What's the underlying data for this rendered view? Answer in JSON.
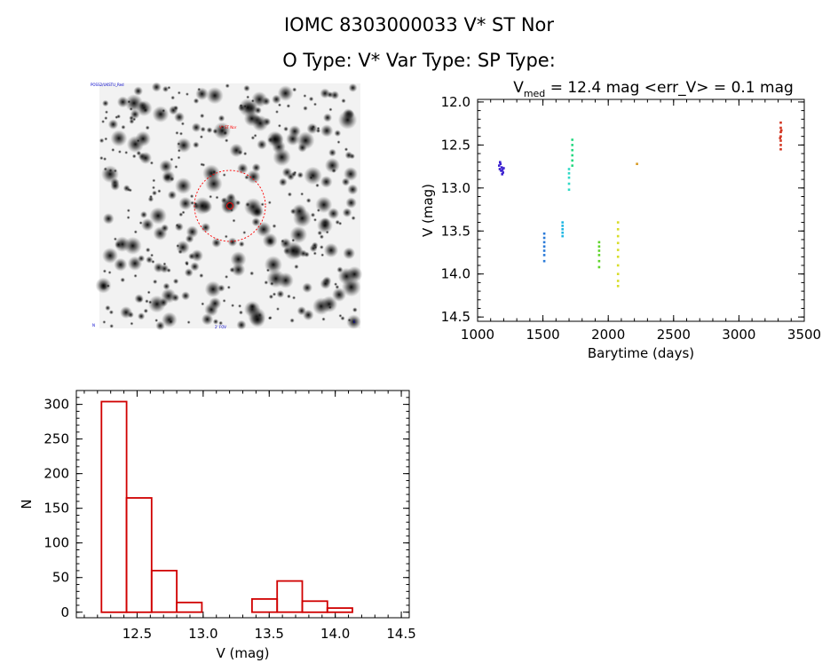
{
  "header": {
    "title_line1": "IOMC 8303000033   V* ST Nor",
    "title_line2": "O Type: V*  Var Type:   SP Type:"
  },
  "finder_image": {
    "label_top_left": "POSS2/UKSTU_Red",
    "label_target": "V* ST Nor",
    "label_bottom_center": "2' FOV",
    "label_bottom_left": "N",
    "label_bottom_right": "E",
    "colors": {
      "marker": "#ff0000",
      "labels": "#0000cc"
    }
  },
  "chart_data": [
    {
      "type": "scatter",
      "title_parts": {
        "prefix": "V",
        "subscript": "med",
        "suffix": " = 12.4 mag <err_V> = 0.1 mag"
      },
      "xlabel": "Barytime (days)",
      "ylabel": "V (mag)",
      "xlim": [
        1000,
        3500
      ],
      "ylim": [
        14.55,
        11.97
      ],
      "x_ticks": [
        "1000",
        "1500",
        "2000",
        "2500",
        "3000",
        "3500"
      ],
      "y_ticks": [
        "12.0",
        "12.5",
        "13.0",
        "13.5",
        "14.0",
        "14.5"
      ],
      "series": [
        {
          "color": "#3a1fd0",
          "points": [
            [
              1165,
              12.74
            ],
            [
              1170,
              12.78
            ],
            [
              1175,
              12.72
            ],
            [
              1180,
              12.8
            ],
            [
              1185,
              12.76
            ],
            [
              1190,
              12.79
            ],
            [
              1195,
              12.82
            ],
            [
              1200,
              12.77
            ],
            [
              1172,
              12.7
            ],
            [
              1188,
              12.84
            ]
          ]
        },
        {
          "color": "#2a7ad8",
          "points": [
            [
              1510,
              13.53
            ],
            [
              1510,
              13.58
            ],
            [
              1510,
              13.63
            ],
            [
              1510,
              13.68
            ],
            [
              1510,
              13.73
            ],
            [
              1510,
              13.78
            ],
            [
              1510,
              13.85
            ]
          ]
        },
        {
          "color": "#21b7e3",
          "points": [
            [
              1650,
              13.4
            ],
            [
              1650,
              13.44
            ],
            [
              1650,
              13.48
            ],
            [
              1650,
              13.52
            ],
            [
              1650,
              13.56
            ]
          ]
        },
        {
          "color": "#2fd9c6",
          "points": [
            [
              1700,
              12.78
            ],
            [
              1700,
              12.83
            ],
            [
              1700,
              12.88
            ],
            [
              1700,
              12.95
            ],
            [
              1700,
              13.02
            ]
          ]
        },
        {
          "color": "#25d880",
          "points": [
            [
              1725,
              12.44
            ],
            [
              1725,
              12.5
            ],
            [
              1725,
              12.56
            ],
            [
              1725,
              12.62
            ],
            [
              1725,
              12.68
            ],
            [
              1725,
              12.74
            ]
          ]
        },
        {
          "color": "#5fd42a",
          "points": [
            [
              1930,
              13.63
            ],
            [
              1930,
              13.68
            ],
            [
              1930,
              13.73
            ],
            [
              1930,
              13.78
            ],
            [
              1930,
              13.85
            ],
            [
              1930,
              13.92
            ]
          ]
        },
        {
          "color": "#d8dd2a",
          "points": [
            [
              2075,
              13.4
            ],
            [
              2075,
              13.48
            ],
            [
              2075,
              13.56
            ],
            [
              2075,
              13.64
            ],
            [
              2075,
              13.72
            ],
            [
              2075,
              13.8
            ],
            [
              2075,
              13.9
            ],
            [
              2075,
              14.0
            ],
            [
              2075,
              14.08
            ],
            [
              2075,
              14.14
            ]
          ]
        },
        {
          "color": "#d79a22",
          "points": [
            [
              2220,
              12.72
            ]
          ]
        },
        {
          "color": "#d2331e",
          "points": [
            [
              3320,
              12.24
            ],
            [
              3320,
              12.3
            ],
            [
              3320,
              12.35
            ],
            [
              3320,
              12.4
            ],
            [
              3320,
              12.45
            ],
            [
              3320,
              12.5
            ],
            [
              3320,
              12.55
            ],
            [
              3325,
              12.33
            ],
            [
              3315,
              12.42
            ]
          ]
        }
      ]
    },
    {
      "type": "bar",
      "xlabel": "V (mag)",
      "ylabel": "N",
      "xlim": [
        12.04,
        14.56
      ],
      "ylim": [
        -8,
        320
      ],
      "x_ticks": [
        "12.5",
        "13.0",
        "13.5",
        "14.0",
        "14.5"
      ],
      "y_ticks": [
        "0",
        "50",
        "100",
        "150",
        "200",
        "250",
        "300"
      ],
      "bin_width": 0.19,
      "color": "#d00000",
      "bins": [
        {
          "x0": 12.23,
          "count": 304
        },
        {
          "x0": 12.42,
          "count": 165
        },
        {
          "x0": 12.61,
          "count": 60
        },
        {
          "x0": 12.8,
          "count": 14
        },
        {
          "x0": 12.99,
          "count": 0
        },
        {
          "x0": 13.18,
          "count": 0
        },
        {
          "x0": 13.37,
          "count": 19
        },
        {
          "x0": 13.56,
          "count": 45
        },
        {
          "x0": 13.75,
          "count": 16
        },
        {
          "x0": 13.94,
          "count": 6
        }
      ]
    }
  ]
}
